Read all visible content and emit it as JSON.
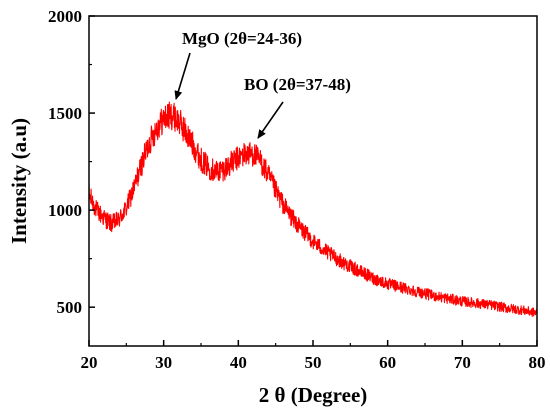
{
  "chart_data": {
    "type": "line",
    "title": "",
    "xlabel": "2 θ (Degree)",
    "ylabel": "Intensity (a.u)",
    "xlim": [
      20,
      80
    ],
    "ylim": [
      300,
      2000
    ],
    "xticks": [
      20,
      30,
      40,
      50,
      60,
      70,
      80
    ],
    "yticks": [
      500,
      1000,
      1500,
      2000
    ],
    "xtick_labels": [
      "20",
      "30",
      "40",
      "50",
      "60",
      "70",
      "80"
    ],
    "ytick_labels": [
      "500",
      "1000",
      "1500",
      "2000"
    ],
    "grid": false,
    "legend": "none",
    "series": [
      {
        "color": "#ff0000",
        "x": [
          20,
          21,
          22,
          23,
          24,
          25,
          26,
          27,
          28,
          29,
          30,
          31,
          32,
          33,
          34,
          35,
          36,
          37,
          38,
          39,
          40,
          41,
          42,
          43,
          44,
          45,
          46,
          47,
          48,
          49,
          50,
          52,
          54,
          56,
          58,
          60,
          62,
          64,
          66,
          68,
          70,
          72,
          74,
          76,
          78,
          80
        ],
        "y": [
          1080,
          1000,
          960,
          930,
          950,
          1010,
          1110,
          1230,
          1340,
          1420,
          1470,
          1490,
          1460,
          1400,
          1330,
          1260,
          1220,
          1200,
          1210,
          1240,
          1270,
          1290,
          1290,
          1250,
          1180,
          1100,
          1030,
          970,
          920,
          880,
          840,
          780,
          730,
          690,
          650,
          620,
          600,
          580,
          560,
          545,
          530,
          520,
          510,
          495,
          485,
          470
        ]
      }
    ],
    "annotations": [
      {
        "text": "MgO (2θ=24-36)",
        "x": 31,
        "y": 1490
      },
      {
        "text": "BO (2θ=37-48)",
        "x": 42,
        "y": 1300
      }
    ]
  }
}
